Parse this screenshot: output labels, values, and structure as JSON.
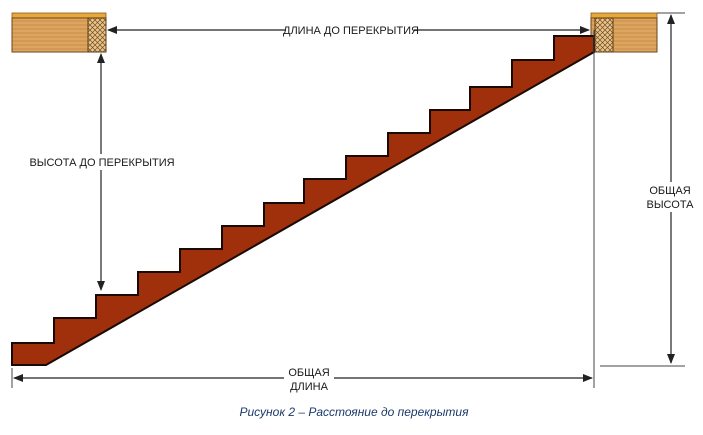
{
  "labels": {
    "length_to_ceiling": "ДЛИНА ДО ПЕРЕКРЫТИЯ",
    "height_to_ceiling": "ВЫСОТА ДО ПЕРЕКРЫТИЯ",
    "total_height_line1": "ОБЩАЯ",
    "total_height_line2": "ВЫСОТА",
    "total_length_line1": "ОБЩАЯ",
    "total_length_line2": "ДЛИНА"
  },
  "caption": "Рисунок 2 – Расстояние до перекрытия",
  "colors": {
    "stair_fill": "#a0300c",
    "stair_outline": "#1a0a04",
    "beam_wood": "#d9a05a",
    "beam_top": "#e7a93a",
    "line": "#333333",
    "caption": "#1a3a6b"
  }
}
